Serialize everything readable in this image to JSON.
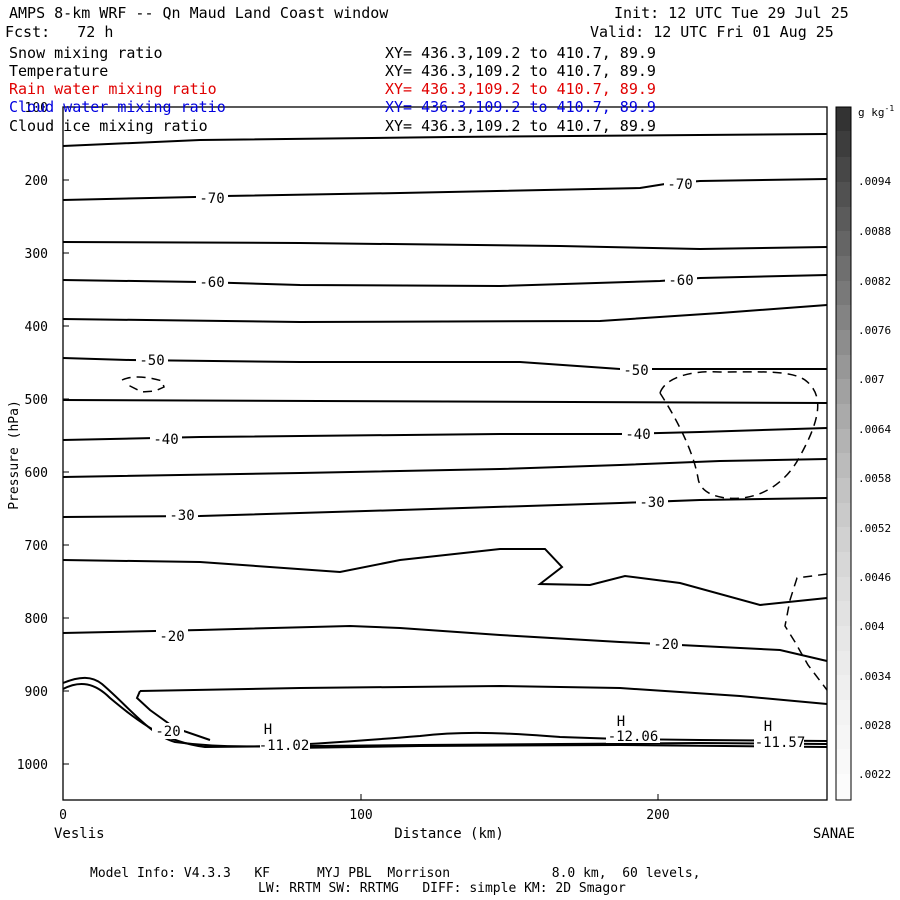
{
  "header": {
    "title": "AMPS 8-km WRF -- Qn Maud Land Coast window",
    "init": "Init: 12 UTC Tue 29 Jul 25",
    "fcst": "Fcst:   72 h",
    "valid": "Valid: 12 UTC Fri 01 Aug 25"
  },
  "fields": [
    {
      "name": "Snow mixing ratio",
      "xy": "XY= 436.3,109.2 to 410.7, 89.9",
      "color": "#000000"
    },
    {
      "name": "Temperature",
      "xy": "XY= 436.3,109.2 to 410.7, 89.9",
      "color": "#000000"
    },
    {
      "name": "Rain water mixing ratio",
      "xy": "XY= 436.3,109.2 to 410.7, 89.9",
      "color": "#e00000"
    },
    {
      "name": "Cloud water mixing ratio",
      "xy": "XY= 436.3,109.2 to 410.7, 89.9",
      "color": "#0000e0"
    },
    {
      "name": "Cloud ice mixing ratio",
      "xy": "XY= 436.3,109.2 to 410.7, 89.9",
      "color": "#000000"
    }
  ],
  "footer": {
    "line1": "Model Info: V4.3.3   KF      MYJ PBL  Morrison             8.0 km,  60 levels,",
    "line2": "LW: RRTM SW: RRTMG   DIFF: simple KM: 2D Smagor"
  },
  "chart_data": {
    "type": "contour-cross-section",
    "xlabel": "Distance (km)",
    "ylabel": "Pressure (hPa)",
    "xlim": [
      0,
      258
    ],
    "ylim": [
      1050,
      75
    ],
    "x_ticks": [
      0,
      100,
      200
    ],
    "y_ticks": [
      200,
      300,
      400,
      500,
      600,
      700,
      800,
      900,
      1000
    ],
    "y_tick_top": "100",
    "x_endpoints": {
      "left": "Veslis",
      "right": "SANAE"
    },
    "colorbar": {
      "unit": "g kg",
      "unit_exp": "-1",
      "labels": [
        ".0094",
        ".0088",
        ".0082",
        ".0076",
        ".007",
        ".0064",
        ".0058",
        ".0052",
        ".0046",
        ".004",
        ".0034",
        ".0028",
        ".0022"
      ]
    },
    "temperature_labels": [
      "-70",
      "-70",
      "-60",
      "-60",
      "-50",
      "-50",
      "-40",
      "-40",
      "-30",
      "-30",
      "-20",
      "-20",
      "-20"
    ],
    "highs": [
      {
        "letter": "H",
        "value": "-11.02"
      },
      {
        "letter": "H",
        "value": "-12.06"
      },
      {
        "letter": "H",
        "value": "-11.57"
      }
    ]
  }
}
